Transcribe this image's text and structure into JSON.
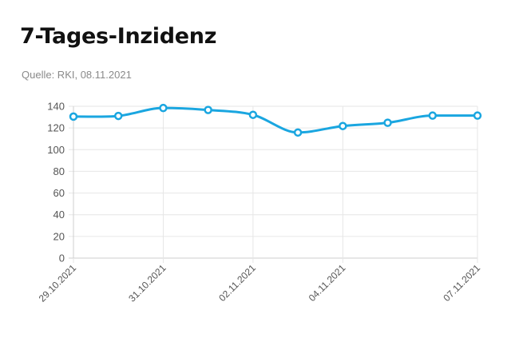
{
  "title": "7-Tages-Inzidenz",
  "source": "Quelle: RKI, 08.11.2021",
  "chart_data": {
    "type": "line",
    "title": "7-Tages-Inzidenz",
    "xlabel": "",
    "ylabel": "",
    "x": [
      "29.10.2021",
      "30.10.2021",
      "31.10.2021",
      "01.11.2021",
      "02.11.2021",
      "03.11.2021",
      "04.11.2021",
      "05.11.2021",
      "06.11.2021",
      "07.11.2021"
    ],
    "x_tick_labels": [
      "29.10.2021",
      "31.10.2021",
      "02.11.2021",
      "04.11.2021",
      "07.11.2021"
    ],
    "series": [
      {
        "values": [
          130.5,
          131.1,
          138.4,
          136.6,
          132.1,
          115.8,
          121.8,
          124.8,
          131.4,
          131.4
        ]
      }
    ],
    "ylim": [
      0,
      140
    ],
    "y_ticks": [
      0,
      20,
      40,
      60,
      80,
      100,
      120,
      140
    ],
    "grid": true,
    "legend": "none",
    "colors": {
      "line": "#1aa6e0",
      "grid": "#e6e6e6",
      "axis": "#cfcfcf"
    }
  }
}
